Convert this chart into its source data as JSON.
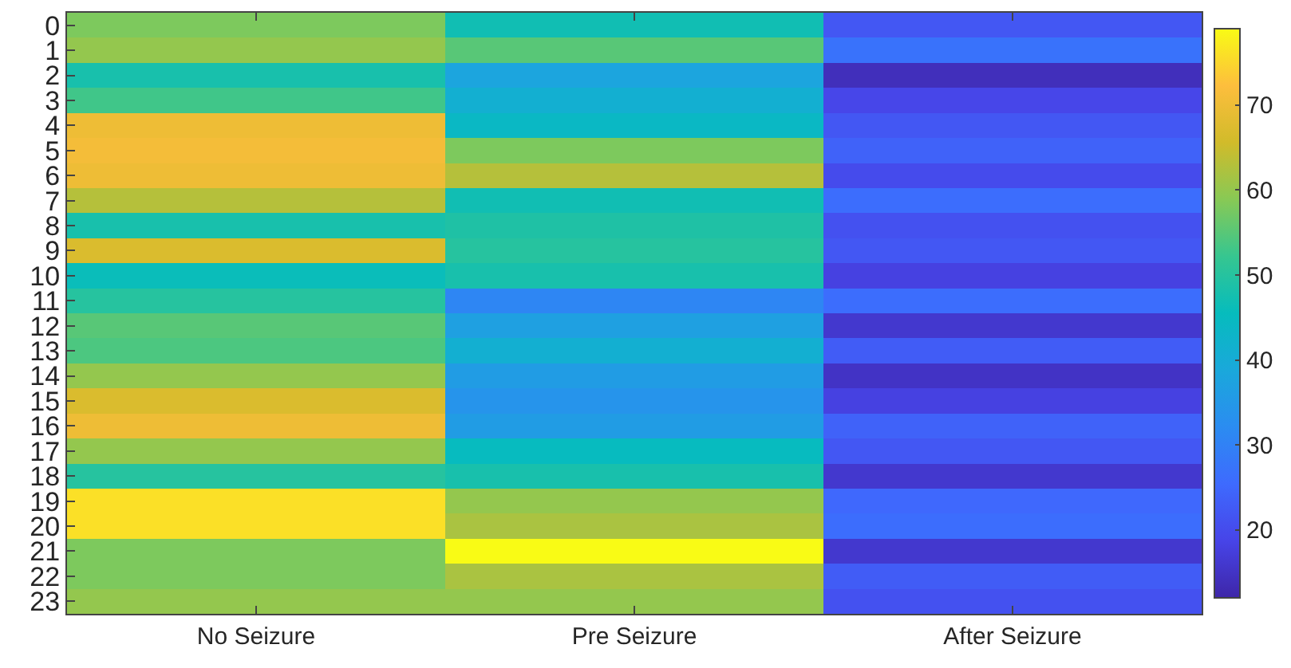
{
  "chart_data": {
    "type": "heatmap",
    "categories": [
      "No Seizure",
      "Pre Seizure",
      "After Seizure"
    ],
    "y_categories": [
      "0",
      "1",
      "2",
      "3",
      "4",
      "5",
      "6",
      "7",
      "8",
      "9",
      "10",
      "11",
      "12",
      "13",
      "14",
      "15",
      "16",
      "17",
      "18",
      "19",
      "20",
      "21",
      "22",
      "23"
    ],
    "cells": [
      [
        58,
        47,
        22
      ],
      [
        60,
        55,
        27
      ],
      [
        48,
        38,
        14
      ],
      [
        53,
        41,
        19
      ],
      [
        70,
        44,
        22
      ],
      [
        71,
        58,
        24
      ],
      [
        70,
        63,
        20
      ],
      [
        63,
        47,
        26
      ],
      [
        48,
        49,
        21
      ],
      [
        67,
        50,
        22
      ],
      [
        46,
        48,
        18
      ],
      [
        50,
        31,
        26
      ],
      [
        55,
        37,
        16
      ],
      [
        54,
        41,
        23
      ],
      [
        60,
        36,
        15
      ],
      [
        67,
        34,
        18
      ],
      [
        70,
        36,
        24
      ],
      [
        60,
        45,
        22
      ],
      [
        50,
        48,
        16
      ],
      [
        76,
        60,
        25
      ],
      [
        76,
        62,
        26
      ],
      [
        58,
        79,
        16
      ],
      [
        58,
        62,
        23
      ],
      [
        60,
        60,
        21
      ]
    ],
    "clim": [
      12,
      79
    ],
    "cticks": [
      20,
      30,
      40,
      50,
      60,
      70
    ]
  }
}
